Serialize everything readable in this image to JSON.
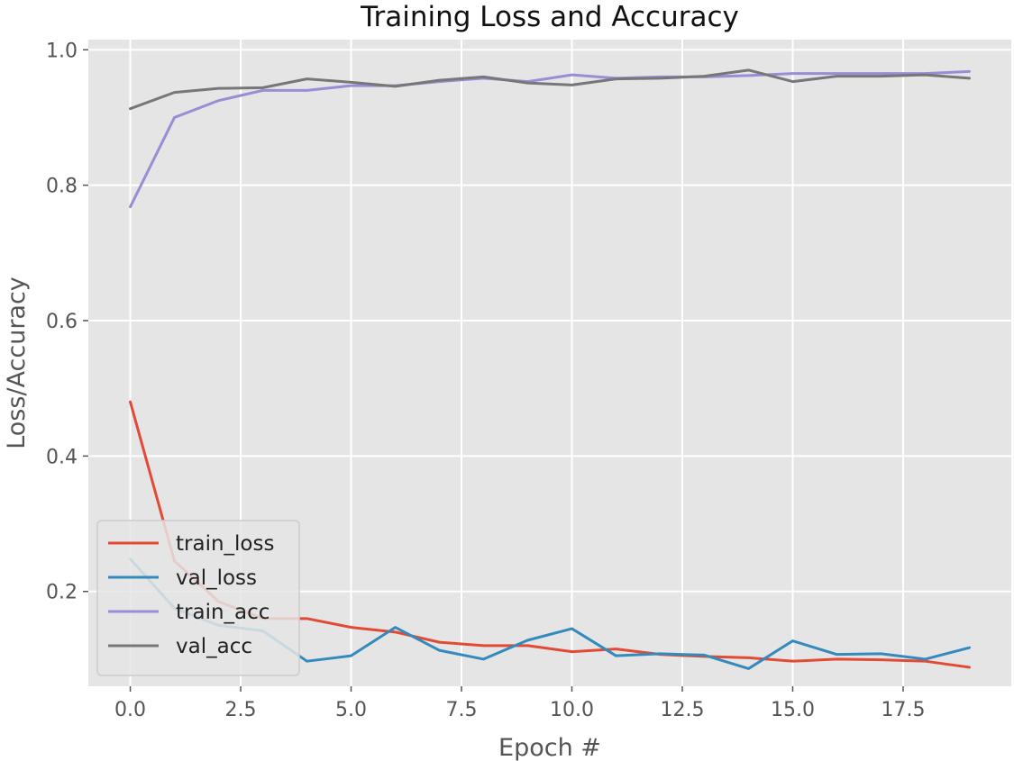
{
  "chart_data": {
    "type": "line",
    "title": "Training Loss and Accuracy",
    "xlabel": "Epoch #",
    "ylabel": "Loss/Accuracy",
    "xlim": [
      -0.95,
      19.95
    ],
    "ylim": [
      0.06,
      1.015
    ],
    "xticks": [
      "0.0",
      "2.5",
      "5.0",
      "7.5",
      "10.0",
      "12.5",
      "15.0",
      "17.5"
    ],
    "xtick_values": [
      0,
      2.5,
      5,
      7.5,
      10,
      12.5,
      15,
      17.5
    ],
    "yticks": [
      "0.2",
      "0.4",
      "0.6",
      "0.8",
      "1.0"
    ],
    "ytick_values": [
      0.2,
      0.4,
      0.6,
      0.8,
      1.0
    ],
    "grid": true,
    "legend_position": "lower-left",
    "x": [
      0,
      1,
      2,
      3,
      4,
      5,
      6,
      7,
      8,
      9,
      10,
      11,
      12,
      13,
      14,
      15,
      16,
      17,
      18,
      19
    ],
    "series": [
      {
        "name": "train_loss",
        "color": "#e24a33",
        "values": [
          0.48,
          0.245,
          0.185,
          0.16,
          0.16,
          0.147,
          0.14,
          0.125,
          0.12,
          0.12,
          0.111,
          0.115,
          0.107,
          0.104,
          0.102,
          0.097,
          0.1,
          0.099,
          0.097,
          0.088
        ]
      },
      {
        "name": "val_loss",
        "color": "#348abd",
        "values": [
          0.248,
          0.175,
          0.15,
          0.142,
          0.097,
          0.105,
          0.147,
          0.113,
          0.1,
          0.128,
          0.145,
          0.105,
          0.108,
          0.106,
          0.086,
          0.127,
          0.107,
          0.108,
          0.1,
          0.117
        ]
      },
      {
        "name": "train_acc",
        "color": "#988ed5",
        "values": [
          0.768,
          0.9,
          0.925,
          0.94,
          0.94,
          0.947,
          0.947,
          0.953,
          0.958,
          0.953,
          0.963,
          0.958,
          0.96,
          0.96,
          0.962,
          0.965,
          0.965,
          0.965,
          0.965,
          0.968
        ]
      },
      {
        "name": "val_acc",
        "color": "#777777",
        "values": [
          0.913,
          0.937,
          0.943,
          0.944,
          0.957,
          0.952,
          0.946,
          0.955,
          0.96,
          0.951,
          0.948,
          0.957,
          0.958,
          0.961,
          0.97,
          0.953,
          0.961,
          0.961,
          0.963,
          0.958
        ]
      }
    ]
  }
}
